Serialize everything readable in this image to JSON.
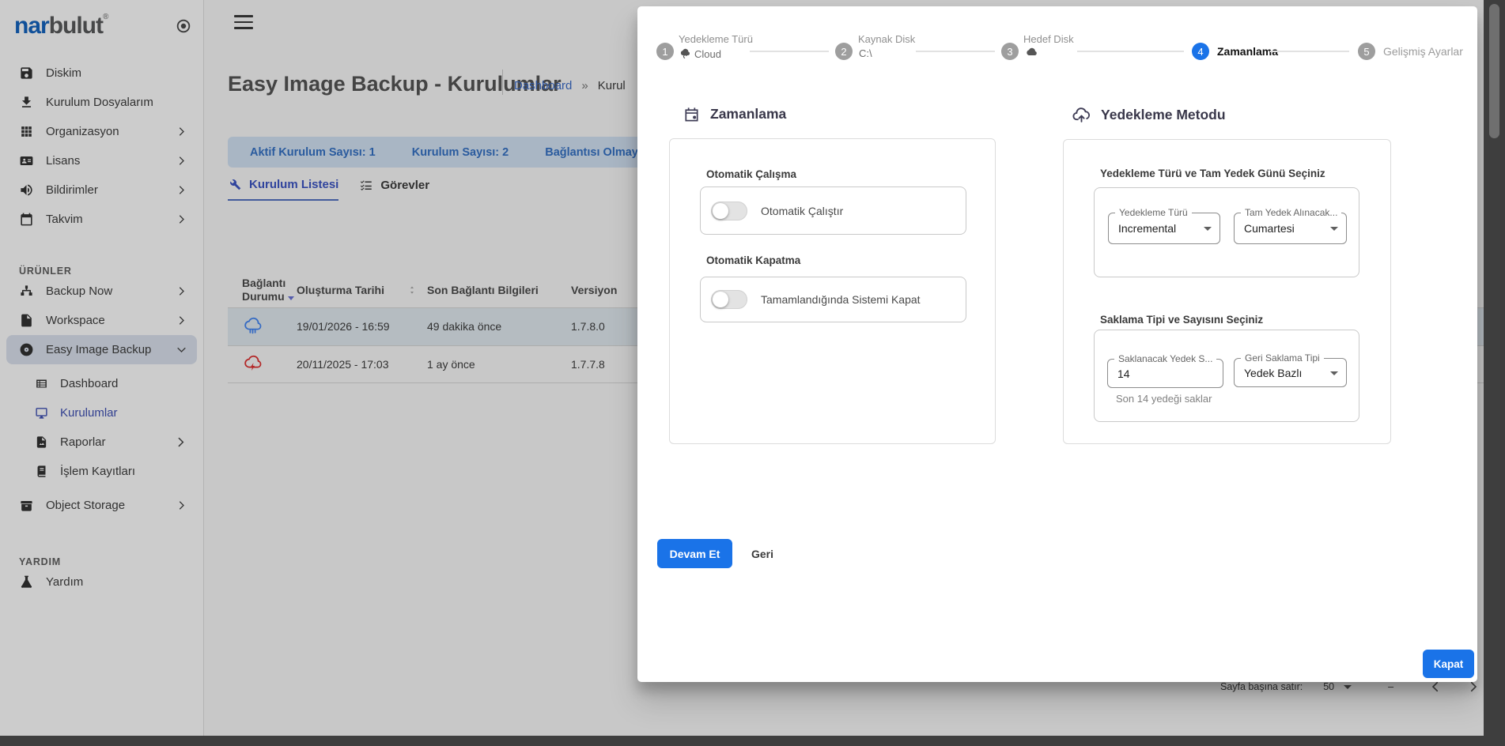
{
  "brand": {
    "nar": "nar",
    "bulut": "bulut",
    "reg": "®"
  },
  "colors": {
    "primary_blue": "#1a73e8",
    "brand_nar": "#1565c0",
    "brand_bulut": "#595a5c",
    "active_link": "#3f51b5",
    "banner_bg": "#d4e4f6",
    "banner_text": "#3572c6",
    "row_highlight": "#e3ebf2",
    "status_connected": "#4285f4",
    "status_disconnected": "#e03131"
  },
  "sidebar": {
    "main_items": [
      {
        "label": "Diskim"
      },
      {
        "label": "Kurulum Dosyalarım"
      },
      {
        "label": "Organizasyon"
      },
      {
        "label": "Lisans"
      },
      {
        "label": "Bildirimler"
      },
      {
        "label": "Takvim"
      }
    ],
    "products_label": "ÜRÜNLER",
    "product_items": [
      {
        "label": "Backup Now"
      },
      {
        "label": "Workspace"
      },
      {
        "label": "Easy Image Backup"
      }
    ],
    "easy_children": [
      {
        "label": "Dashboard"
      },
      {
        "label": "Kurulumlar"
      },
      {
        "label": "Raporlar"
      },
      {
        "label": "İşlem Kayıtları"
      }
    ],
    "object_storage": "Object Storage",
    "help_label": "YARDIM",
    "help_item": "Yardım"
  },
  "header": {
    "title": "Easy Image Backup - Kurulumlar",
    "breadcrumb_home": "Dashboard",
    "breadcrumb_sep": "»",
    "breadcrumb_current": "Kurul"
  },
  "summary": {
    "active_count": "Aktif Kurulum Sayısı: 1",
    "total_count": "Kurulum Sayısı: 2",
    "offline": "Bağlantısı Olmayan"
  },
  "tabs": {
    "list": "Kurulum Listesi",
    "tasks": "Görevler"
  },
  "table": {
    "col_status_line1": "Bağlantı",
    "col_status_line2": "Durumu",
    "col_created": "Oluşturma Tarihi",
    "col_last": "Son Bağlantı Bilgileri",
    "col_version": "Versiyon",
    "rows": [
      {
        "status": "connected",
        "created": "19/01/2026 - 16:59",
        "last": "49 dakika önce",
        "version": "1.7.8.0"
      },
      {
        "status": "disconnected",
        "created": "20/11/2025 - 17:03",
        "last": "1 ay önce",
        "version": "1.7.7.8"
      }
    ]
  },
  "pagination": {
    "label": "Sayfa başına satır:",
    "value": "50",
    "range": "–"
  },
  "wizard": {
    "steps": [
      {
        "num": "1",
        "title": "Yedekleme Türü",
        "sub": "Cloud"
      },
      {
        "num": "2",
        "title": "Kaynak Disk",
        "sub": "C:\\"
      },
      {
        "num": "3",
        "title": "Hedef Disk",
        "sub": ""
      },
      {
        "num": "4",
        "title": "Zamanlama"
      },
      {
        "num": "5",
        "title": "Gelişmiş Ayarlar"
      }
    ],
    "schedule": {
      "heading": "Zamanlama",
      "auto_run_label": "Otomatik Çalışma",
      "auto_run_toggle": "Otomatik Çalıştır",
      "auto_off_label": "Otomatik Kapatma",
      "auto_off_toggle": "Tamamlandığında Sistemi Kapat"
    },
    "method": {
      "heading": "Yedekleme Metodu",
      "type_section": "Yedekleme Türü ve Tam Yedek Günü Seçiniz",
      "type_field_label": "Yedekleme Türü",
      "type_field_value": "Incremental",
      "day_field_label": "Tam Yedek Alınacak...",
      "day_field_value": "Cumartesi",
      "retention_section": "Saklama Tipi ve Sayısını Seçiniz",
      "count_field_label": "Saklanacak Yedek S...",
      "count_field_value": "14",
      "count_helper": "Son 14 yedeği saklar",
      "ret_type_label": "Geri Saklama Tipi",
      "ret_type_value": "Yedek Bazlı"
    },
    "buttons": {
      "continue": "Devam Et",
      "back": "Geri",
      "close": "Kapat"
    }
  }
}
